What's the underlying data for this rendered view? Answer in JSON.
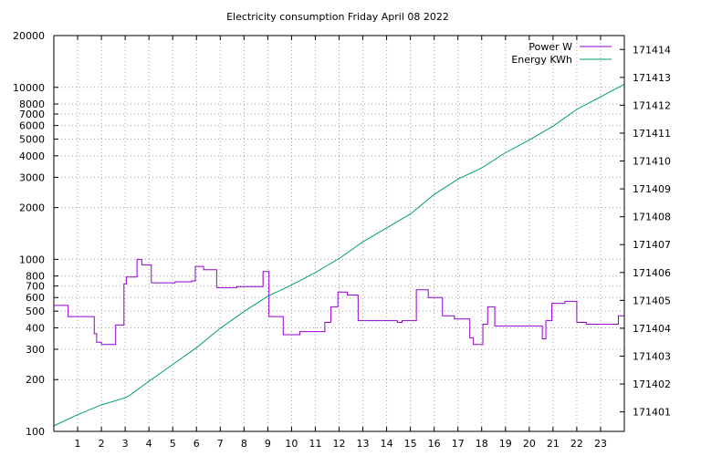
{
  "chart_data": {
    "type": "line",
    "title": "Electricity consumption Friday April 08 2022",
    "xlabel": "",
    "ylabel": "",
    "y2label": "",
    "grid": true,
    "legend_position": "top-right",
    "x_range": [
      0,
      24
    ],
    "x_ticks": [
      "1",
      "2",
      "3",
      "4",
      "5",
      "6",
      "7",
      "8",
      "9",
      "10",
      "11",
      "12",
      "13",
      "14",
      "15",
      "16",
      "17",
      "18",
      "19",
      "20",
      "21",
      "22",
      "23"
    ],
    "y_scale": "log",
    "y_range": [
      100,
      20000
    ],
    "y_ticks": [
      "100",
      "200",
      "300",
      "400",
      "500",
      "600",
      "700",
      "800",
      "1000",
      "2000",
      "3000",
      "4000",
      "5000",
      "6000",
      "7000",
      "8000",
      "10000",
      "20000"
    ],
    "y2_range": [
      171400.3,
      171414.5
    ],
    "y2_ticks": [
      "171401",
      "171402",
      "171403",
      "171404",
      "171405",
      "171406",
      "171407",
      "171408",
      "171409",
      "171410",
      "171411",
      "171412",
      "171413",
      "171414"
    ],
    "series": [
      {
        "name": "Power W",
        "axis": "y",
        "color": "#9400d3",
        "step": true,
        "x": [
          0,
          0.6,
          1.7,
          1.8,
          2.0,
          2.6,
          2.95,
          3.05,
          3.15,
          3.5,
          3.7,
          4.1,
          5.1,
          5.8,
          5.95,
          6.3,
          6.85,
          7.7,
          8.8,
          9.05,
          9.65,
          10.35,
          11.4,
          11.65,
          11.95,
          12.35,
          12.8,
          14.45,
          14.65,
          15.25,
          15.75,
          16.35,
          16.85,
          17.5,
          17.65,
          18.05,
          18.25,
          18.55,
          20.05,
          20.55,
          20.7,
          20.95,
          21.5,
          22.0,
          22.4,
          23.75
        ],
        "values": [
          540,
          465,
          370,
          330,
          320,
          415,
          720,
          790,
          790,
          1000,
          930,
          730,
          740,
          750,
          910,
          870,
          685,
          695,
          850,
          465,
          365,
          380,
          430,
          530,
          645,
          620,
          440,
          430,
          440,
          665,
          600,
          470,
          450,
          350,
          320,
          420,
          530,
          410,
          410,
          345,
          440,
          555,
          570,
          430,
          420,
          470
        ]
      },
      {
        "name": "Energy KWh",
        "axis": "y2",
        "color": "#009e73",
        "step": false,
        "x": [
          0,
          1,
          2,
          3,
          3.2,
          4,
          5,
          6,
          7,
          8,
          9,
          10,
          11,
          12,
          13,
          14,
          15,
          16,
          17,
          18,
          19,
          20,
          21,
          22,
          23,
          24
        ],
        "values": [
          171400.5,
          171400.9,
          171401.25,
          171401.5,
          171401.6,
          171402.1,
          171402.7,
          171403.3,
          171404.0,
          171404.6,
          171405.15,
          171405.55,
          171406.0,
          171406.5,
          171407.1,
          171407.6,
          171408.1,
          171408.8,
          171409.35,
          171409.75,
          171410.3,
          171410.75,
          171411.25,
          171411.85,
          171412.3,
          171412.75
        ]
      }
    ]
  }
}
